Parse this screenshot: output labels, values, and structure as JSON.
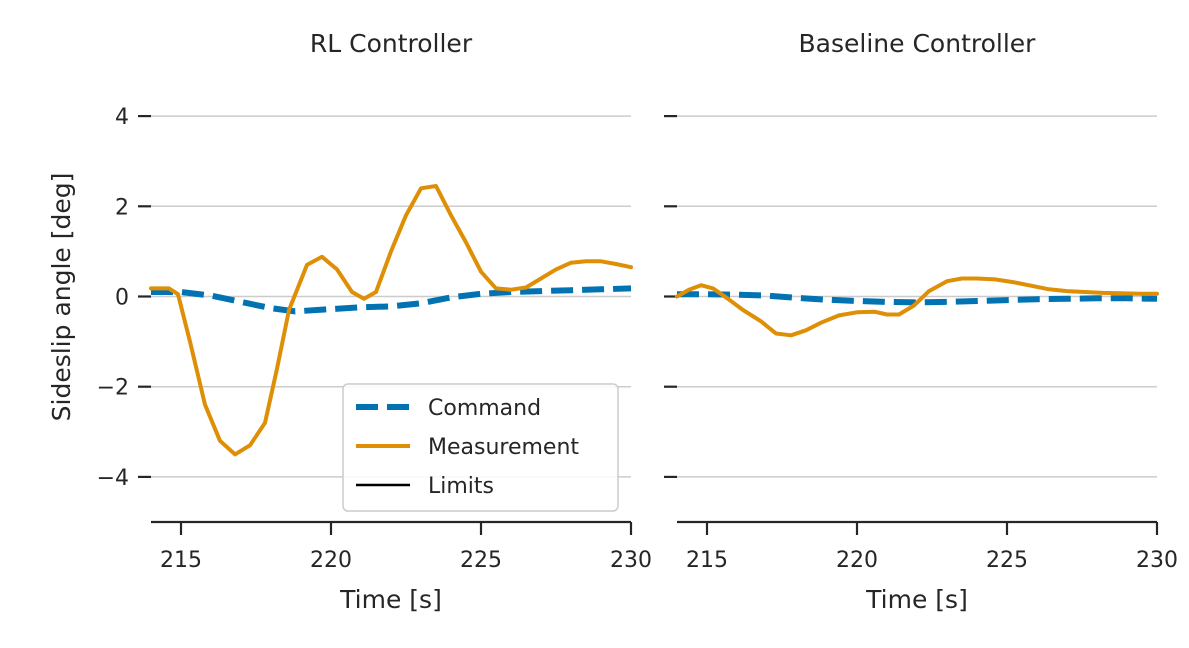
{
  "colors": {
    "command": "#0173b2",
    "measurement": "#de8f05",
    "limits": "#000000",
    "grid": "#cccccc",
    "text": "#262626"
  },
  "legend": {
    "placement": "lower-right of first panel",
    "entries": [
      "Command",
      "Measurement",
      "Limits"
    ]
  },
  "chart_data": [
    {
      "type": "line",
      "title": "RL Controller",
      "xlabel": "Time [s]",
      "ylabel": "Sideslip angle [deg]",
      "xlim": [
        214,
        230
      ],
      "ylim": [
        -5,
        5
      ],
      "xticks": [
        215,
        220,
        225,
        230
      ],
      "xtick_labels": [
        "215",
        "220",
        "225",
        "230"
      ],
      "yticks": [
        -4,
        -2,
        0,
        2,
        4
      ],
      "ytick_labels": [
        "−4",
        "−2",
        "0",
        "2",
        "4"
      ],
      "grid": "y",
      "series": [
        {
          "name": "Command",
          "style": "dashed",
          "x": [
            214,
            215,
            216,
            217,
            218,
            218.8,
            220,
            221,
            222,
            223,
            224,
            225,
            226,
            227,
            228,
            229,
            230
          ],
          "y": [
            0.1,
            0.1,
            0.02,
            -0.12,
            -0.26,
            -0.33,
            -0.28,
            -0.24,
            -0.22,
            -0.15,
            -0.02,
            0.06,
            0.1,
            0.12,
            0.14,
            0.16,
            0.18
          ]
        },
        {
          "name": "Measurement",
          "style": "solid",
          "x": [
            214,
            214.6,
            214.9,
            215.3,
            215.8,
            216.3,
            216.8,
            217.3,
            217.8,
            218.2,
            218.6,
            219.2,
            219.7,
            220.2,
            220.7,
            221.1,
            221.5,
            222,
            222.5,
            223,
            223.5,
            224,
            224.5,
            225,
            225.5,
            226,
            226.5,
            227,
            227.5,
            228,
            228.5,
            229,
            229.5,
            230
          ],
          "y": [
            0.18,
            0.18,
            0.05,
            -1.0,
            -2.4,
            -3.2,
            -3.5,
            -3.3,
            -2.8,
            -1.6,
            -0.3,
            0.7,
            0.88,
            0.6,
            0.1,
            -0.05,
            0.1,
            1.0,
            1.8,
            2.4,
            2.45,
            1.8,
            1.2,
            0.55,
            0.18,
            0.15,
            0.2,
            0.4,
            0.6,
            0.75,
            0.78,
            0.78,
            0.72,
            0.65
          ]
        }
      ]
    },
    {
      "type": "line",
      "title": "Baseline Controller",
      "xlabel": "Time [s]",
      "ylabel": "",
      "xlim": [
        214,
        230
      ],
      "ylim": [
        -5,
        5
      ],
      "xticks": [
        215,
        220,
        225,
        230
      ],
      "xtick_labels": [
        "215",
        "220",
        "225",
        "230"
      ],
      "yticks": [
        -4,
        -2,
        0,
        2,
        4
      ],
      "ytick_labels": [],
      "grid": "y",
      "series": [
        {
          "name": "Command",
          "style": "dashed",
          "x": [
            214,
            215,
            216,
            217,
            218,
            219,
            220,
            221,
            222,
            223,
            224,
            225,
            226,
            227,
            228,
            229,
            230
          ],
          "y": [
            0.05,
            0.05,
            0.04,
            0.02,
            -0.03,
            -0.07,
            -0.1,
            -0.12,
            -0.13,
            -0.12,
            -0.1,
            -0.08,
            -0.06,
            -0.05,
            -0.04,
            -0.04,
            -0.05
          ]
        },
        {
          "name": "Measurement",
          "style": "solid",
          "x": [
            214,
            214.4,
            214.8,
            215.2,
            215.7,
            216.2,
            216.8,
            217.3,
            217.8,
            218.3,
            218.8,
            219.4,
            220,
            220.6,
            221,
            221.4,
            221.9,
            222.4,
            223,
            223.5,
            224,
            224.6,
            225.2,
            225.8,
            226.4,
            227,
            227.6,
            228.2,
            228.8,
            229.4,
            230
          ],
          "y": [
            0.0,
            0.15,
            0.25,
            0.18,
            -0.05,
            -0.3,
            -0.55,
            -0.82,
            -0.86,
            -0.75,
            -0.58,
            -0.42,
            -0.35,
            -0.34,
            -0.4,
            -0.4,
            -0.2,
            0.12,
            0.34,
            0.4,
            0.4,
            0.38,
            0.32,
            0.24,
            0.16,
            0.12,
            0.1,
            0.08,
            0.07,
            0.06,
            0.06
          ]
        }
      ]
    }
  ]
}
